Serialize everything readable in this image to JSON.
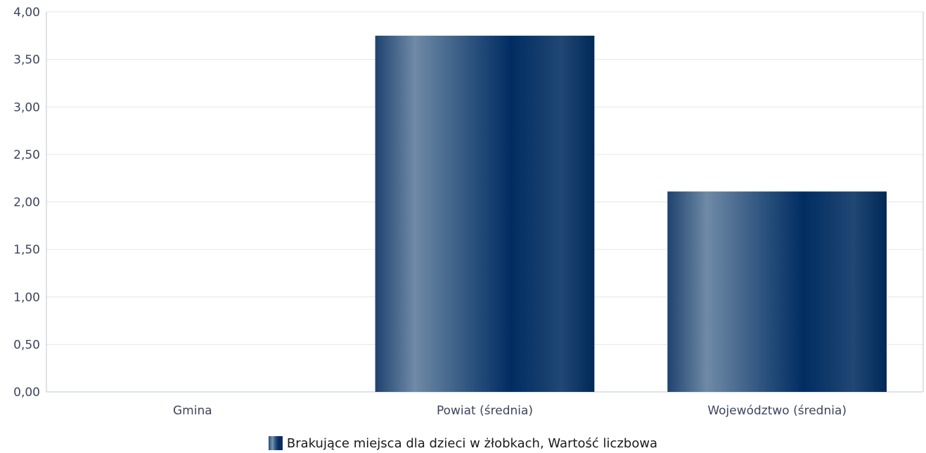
{
  "chart_data": {
    "type": "bar",
    "categories": [
      "Gmina",
      "Powiat (średnia)",
      "Województwo (średnia)"
    ],
    "series": [
      {
        "name": "Brakujące miejsca dla dzieci w żłobkach, Wartość liczbowa",
        "values": [
          0,
          3.75,
          2.11
        ]
      }
    ],
    "ylim": [
      0,
      4
    ],
    "yticks": [
      "0,00",
      "0,50",
      "1,00",
      "1,50",
      "2,00",
      "2,50",
      "3,00",
      "3,50",
      "4,00"
    ],
    "grid": true,
    "legend_position": "bottom"
  },
  "colors": {
    "bar_dark": "#002d62",
    "bar_light": "#6f8aa6",
    "grid": "#e6e6e6",
    "axis": "#c0c4d6",
    "label": "#3e4460"
  }
}
